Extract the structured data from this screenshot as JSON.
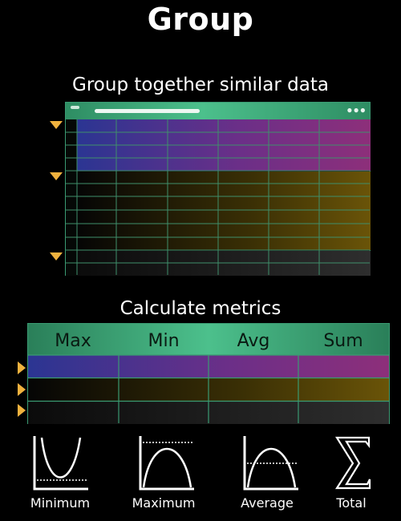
{
  "title": "Group",
  "sections": {
    "group_heading": "Group together similar data",
    "metrics_heading": "Calculate metrics"
  },
  "metrics_table": {
    "headers": [
      "Max",
      "Min",
      "Avg",
      "Sum"
    ]
  },
  "functions": [
    {
      "label": "Minimum",
      "icon": "minimum-curve-icon"
    },
    {
      "label": "Maximum",
      "icon": "maximum-curve-icon"
    },
    {
      "label": "Average",
      "icon": "average-curve-icon"
    },
    {
      "label": "Total",
      "icon": "sigma-icon"
    }
  ],
  "colors": {
    "accent_green": "#4cc08c",
    "arrow_orange": "#f0b23e",
    "group_purple": "#6b2f88",
    "group_gold": "#6a5408",
    "group_gray": "#2e2e2e"
  }
}
